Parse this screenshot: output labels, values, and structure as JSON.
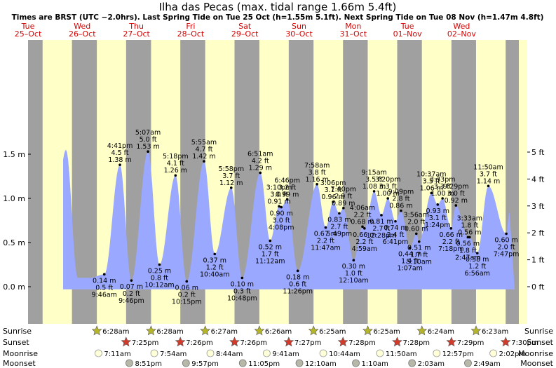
{
  "chart_data": {
    "type": "area",
    "title": "Ilha das Pecas (max. tidal range 1.66m 5.4ft)",
    "subtitle": "Times are BRST (UTC −2.0hrs). Last Spring Tide on Tue 25 Oct (h=1.55m 5.1ft). Next Spring Tide on Tue 08 Nov (h=1.47m 4.8ft)",
    "colors": {
      "water": "#9aa8ff",
      "day": "#ffffc8",
      "night": "#a0a0a0",
      "label": "#d40000"
    },
    "days": [
      {
        "dow": "Tue",
        "date": "25–Oct"
      },
      {
        "dow": "Wed",
        "date": "26–Oct"
      },
      {
        "dow": "Thu",
        "date": "27–Oct"
      },
      {
        "dow": "Fri",
        "date": "28–Oct"
      },
      {
        "dow": "Sat",
        "date": "29–Oct"
      },
      {
        "dow": "Sun",
        "date": "30–Oct"
      },
      {
        "dow": "Mon",
        "date": "31–Oct"
      },
      {
        "dow": "Tue",
        "date": "01–Nov"
      },
      {
        "dow": "Wed",
        "date": "02–Nov"
      }
    ],
    "y_left_ticks": [
      {
        "v": 0,
        "label": "0.0 m"
      },
      {
        "v": 0.5,
        "label": "0.5 m"
      },
      {
        "v": 1.0,
        "label": "1.0 m"
      },
      {
        "v": 1.5,
        "label": "1.5 m"
      }
    ],
    "y_right_ticks": [
      {
        "v": 0,
        "label": "0 ft"
      },
      {
        "v": 1,
        "label": "1 ft"
      },
      {
        "v": 2,
        "label": "2 ft"
      },
      {
        "v": 3,
        "label": "3 ft"
      },
      {
        "v": 4,
        "label": "4 ft"
      },
      {
        "v": 5,
        "label": "5 ft"
      }
    ],
    "ylim_m": [
      -0.17,
      1.76
    ],
    "tides": [
      {
        "time": "9:46am",
        "day": 1,
        "h": 0.14,
        "ft": "0.5",
        "type": "low"
      },
      {
        "time": "4:41pm",
        "day": 1,
        "h": 1.38,
        "ft": "4.5",
        "type": "high"
      },
      {
        "time": "9:46pm",
        "day": 1,
        "h": 0.07,
        "ft": "0.2",
        "type": "low"
      },
      {
        "time": "5:07am",
        "day": 2,
        "h": 1.53,
        "ft": "5.0",
        "type": "high"
      },
      {
        "time": "10:12am",
        "day": 2,
        "h": 0.25,
        "ft": "0.8",
        "type": "low"
      },
      {
        "time": "5:18pm",
        "day": 2,
        "h": 1.26,
        "ft": "4.1",
        "type": "high"
      },
      {
        "time": "10:15pm",
        "day": 2,
        "h": 0.06,
        "ft": "0.2",
        "type": "low"
      },
      {
        "time": "5:55am",
        "day": 3,
        "h": 1.42,
        "ft": "4.7",
        "type": "high"
      },
      {
        "time": "10:40am",
        "day": 3,
        "h": 0.37,
        "ft": "1.2",
        "type": "low"
      },
      {
        "time": "5:58pm",
        "day": 3,
        "h": 1.12,
        "ft": "3.7",
        "type": "high"
      },
      {
        "time": "10:48pm",
        "day": 3,
        "h": 0.1,
        "ft": "0.3",
        "type": "low"
      },
      {
        "time": "6:51am",
        "day": 4,
        "h": 1.29,
        "ft": "4.2",
        "type": "high"
      },
      {
        "time": "11:12am",
        "day": 4,
        "h": 0.52,
        "ft": "1.7",
        "type": "low"
      },
      {
        "time": "3:10pm",
        "day": 4,
        "h": 0.91,
        "ft": "3.0",
        "type": "high"
      },
      {
        "time": "4:08pm",
        "day": 4,
        "h": 0.9,
        "ft": "3.0",
        "type": "low"
      },
      {
        "time": "6:46pm",
        "day": 4,
        "h": 0.99,
        "ft": "3.2",
        "type": "high"
      },
      {
        "time": "11:26pm",
        "day": 4,
        "h": 0.18,
        "ft": "0.6",
        "type": "low"
      },
      {
        "time": "7:58am",
        "day": 5,
        "h": 1.16,
        "ft": "3.8",
        "type": "high"
      },
      {
        "time": "11:47am",
        "day": 5,
        "h": 0.67,
        "ft": "2.2",
        "type": "low"
      },
      {
        "time": "3:06pm",
        "day": 5,
        "h": 0.96,
        "ft": "3.1",
        "type": "high"
      },
      {
        "time": "5:49pm",
        "day": 5,
        "h": 0.83,
        "ft": "2.7",
        "type": "low"
      },
      {
        "time": "7:40pm",
        "day": 5,
        "h": 0.89,
        "ft": "2.9",
        "type": "high"
      },
      {
        "time": "12:10am",
        "day": 6,
        "h": 0.3,
        "ft": "1.0",
        "type": "low"
      },
      {
        "time": "4:06am",
        "day": 6,
        "h": 0.68,
        "ft": "2.2",
        "type": "high"
      },
      {
        "time": "4:59am",
        "day": 6,
        "h": 0.66,
        "ft": "2.2",
        "type": "low"
      },
      {
        "time": "9:15am",
        "day": 6,
        "h": 1.08,
        "ft": "3.5",
        "type": "high"
      },
      {
        "time": "12:28pm",
        "day": 6,
        "h": 0.81,
        "ft": "2.7",
        "type": "low"
      },
      {
        "time": "3:20pm",
        "day": 6,
        "h": 1.0,
        "ft": "3.3",
        "type": "high"
      },
      {
        "time": "6:41pm",
        "day": 6,
        "h": 0.74,
        "ft": "2.4",
        "type": "low"
      },
      {
        "time": "9:09pm",
        "day": 6,
        "h": 0.86,
        "ft": "2.8",
        "type": "high"
      },
      {
        "time": "1:07am",
        "day": 7,
        "h": 0.44,
        "ft": "1.4",
        "type": "low"
      },
      {
        "time": "3:56am",
        "day": 7,
        "h": 0.6,
        "ft": "2.0",
        "type": "high"
      },
      {
        "time": "5:10am",
        "day": 7,
        "h": 0.51,
        "ft": "1.7",
        "type": "low"
      },
      {
        "time": "10:37am",
        "day": 7,
        "h": 1.06,
        "ft": "3.5",
        "type": "high"
      },
      {
        "time": "1:24pm",
        "day": 7,
        "h": 0.93,
        "ft": "3.1",
        "type": "low"
      },
      {
        "time": "3:33pm",
        "day": 7,
        "h": 1.0,
        "ft": "3.3",
        "type": "high"
      },
      {
        "time": "7:18pm",
        "day": 7,
        "h": 0.66,
        "ft": "2.2",
        "type": "low"
      },
      {
        "time": "9:29pm",
        "day": 7,
        "h": 0.92,
        "ft": "3.0",
        "type": "high"
      },
      {
        "time": "2:47am",
        "day": 8,
        "h": 0.56,
        "ft": "1.8",
        "type": "low"
      },
      {
        "time": "3:33am",
        "day": 8,
        "h": 0.56,
        "ft": "1.8",
        "type": "high"
      },
      {
        "time": "6:56am",
        "day": 8,
        "h": 0.38,
        "ft": "1.2",
        "type": "low"
      },
      {
        "time": "11:50am",
        "day": 8,
        "h": 1.14,
        "ft": "3.7",
        "type": "high"
      },
      {
        "time": "7:47pm",
        "day": 8,
        "h": 0.6,
        "ft": "2.0",
        "type": "low"
      }
    ],
    "sun": [
      {
        "day": 1,
        "rise": "6:28am",
        "set": "7:25pm"
      },
      {
        "day": 2,
        "rise": "6:28am",
        "set": "7:26pm"
      },
      {
        "day": 3,
        "rise": "6:27am",
        "set": "7:26pm"
      },
      {
        "day": 4,
        "rise": "6:26am",
        "set": "7:27pm"
      },
      {
        "day": 5,
        "rise": "6:25am",
        "set": "7:28pm"
      },
      {
        "day": 6,
        "rise": "6:25am",
        "set": "7:28pm"
      },
      {
        "day": 7,
        "rise": "6:24am",
        "set": "7:29pm"
      },
      {
        "day": 8,
        "rise": "6:23am",
        "set": "7:30pm"
      }
    ],
    "moonrise": [
      {
        "day": 1,
        "time": "7:11am"
      },
      {
        "day": 2,
        "time": "7:54am"
      },
      {
        "day": 3,
        "time": "8:44am"
      },
      {
        "day": 4,
        "time": "9:41am"
      },
      {
        "day": 5,
        "time": "10:44am"
      },
      {
        "day": 6,
        "time": "11:50am"
      },
      {
        "day": 7,
        "time": "12:57pm"
      },
      {
        "day": 8,
        "time": "2:02pm"
      }
    ],
    "moonset": [
      {
        "day": 1,
        "time": "8:51pm"
      },
      {
        "day": 2,
        "time": "9:57pm"
      },
      {
        "day": 3,
        "time": "11:05pm"
      },
      {
        "day": 5,
        "time": "12:10am"
      },
      {
        "day": 6,
        "time": "1:10am"
      },
      {
        "day": 7,
        "time": "2:03am"
      },
      {
        "day": 8,
        "time": "2:49am"
      }
    ],
    "row_labels": {
      "sunrise": "Sunrise",
      "sunset": "Sunset",
      "moonrise": "Moonrise",
      "moonset": "Moonset"
    }
  }
}
